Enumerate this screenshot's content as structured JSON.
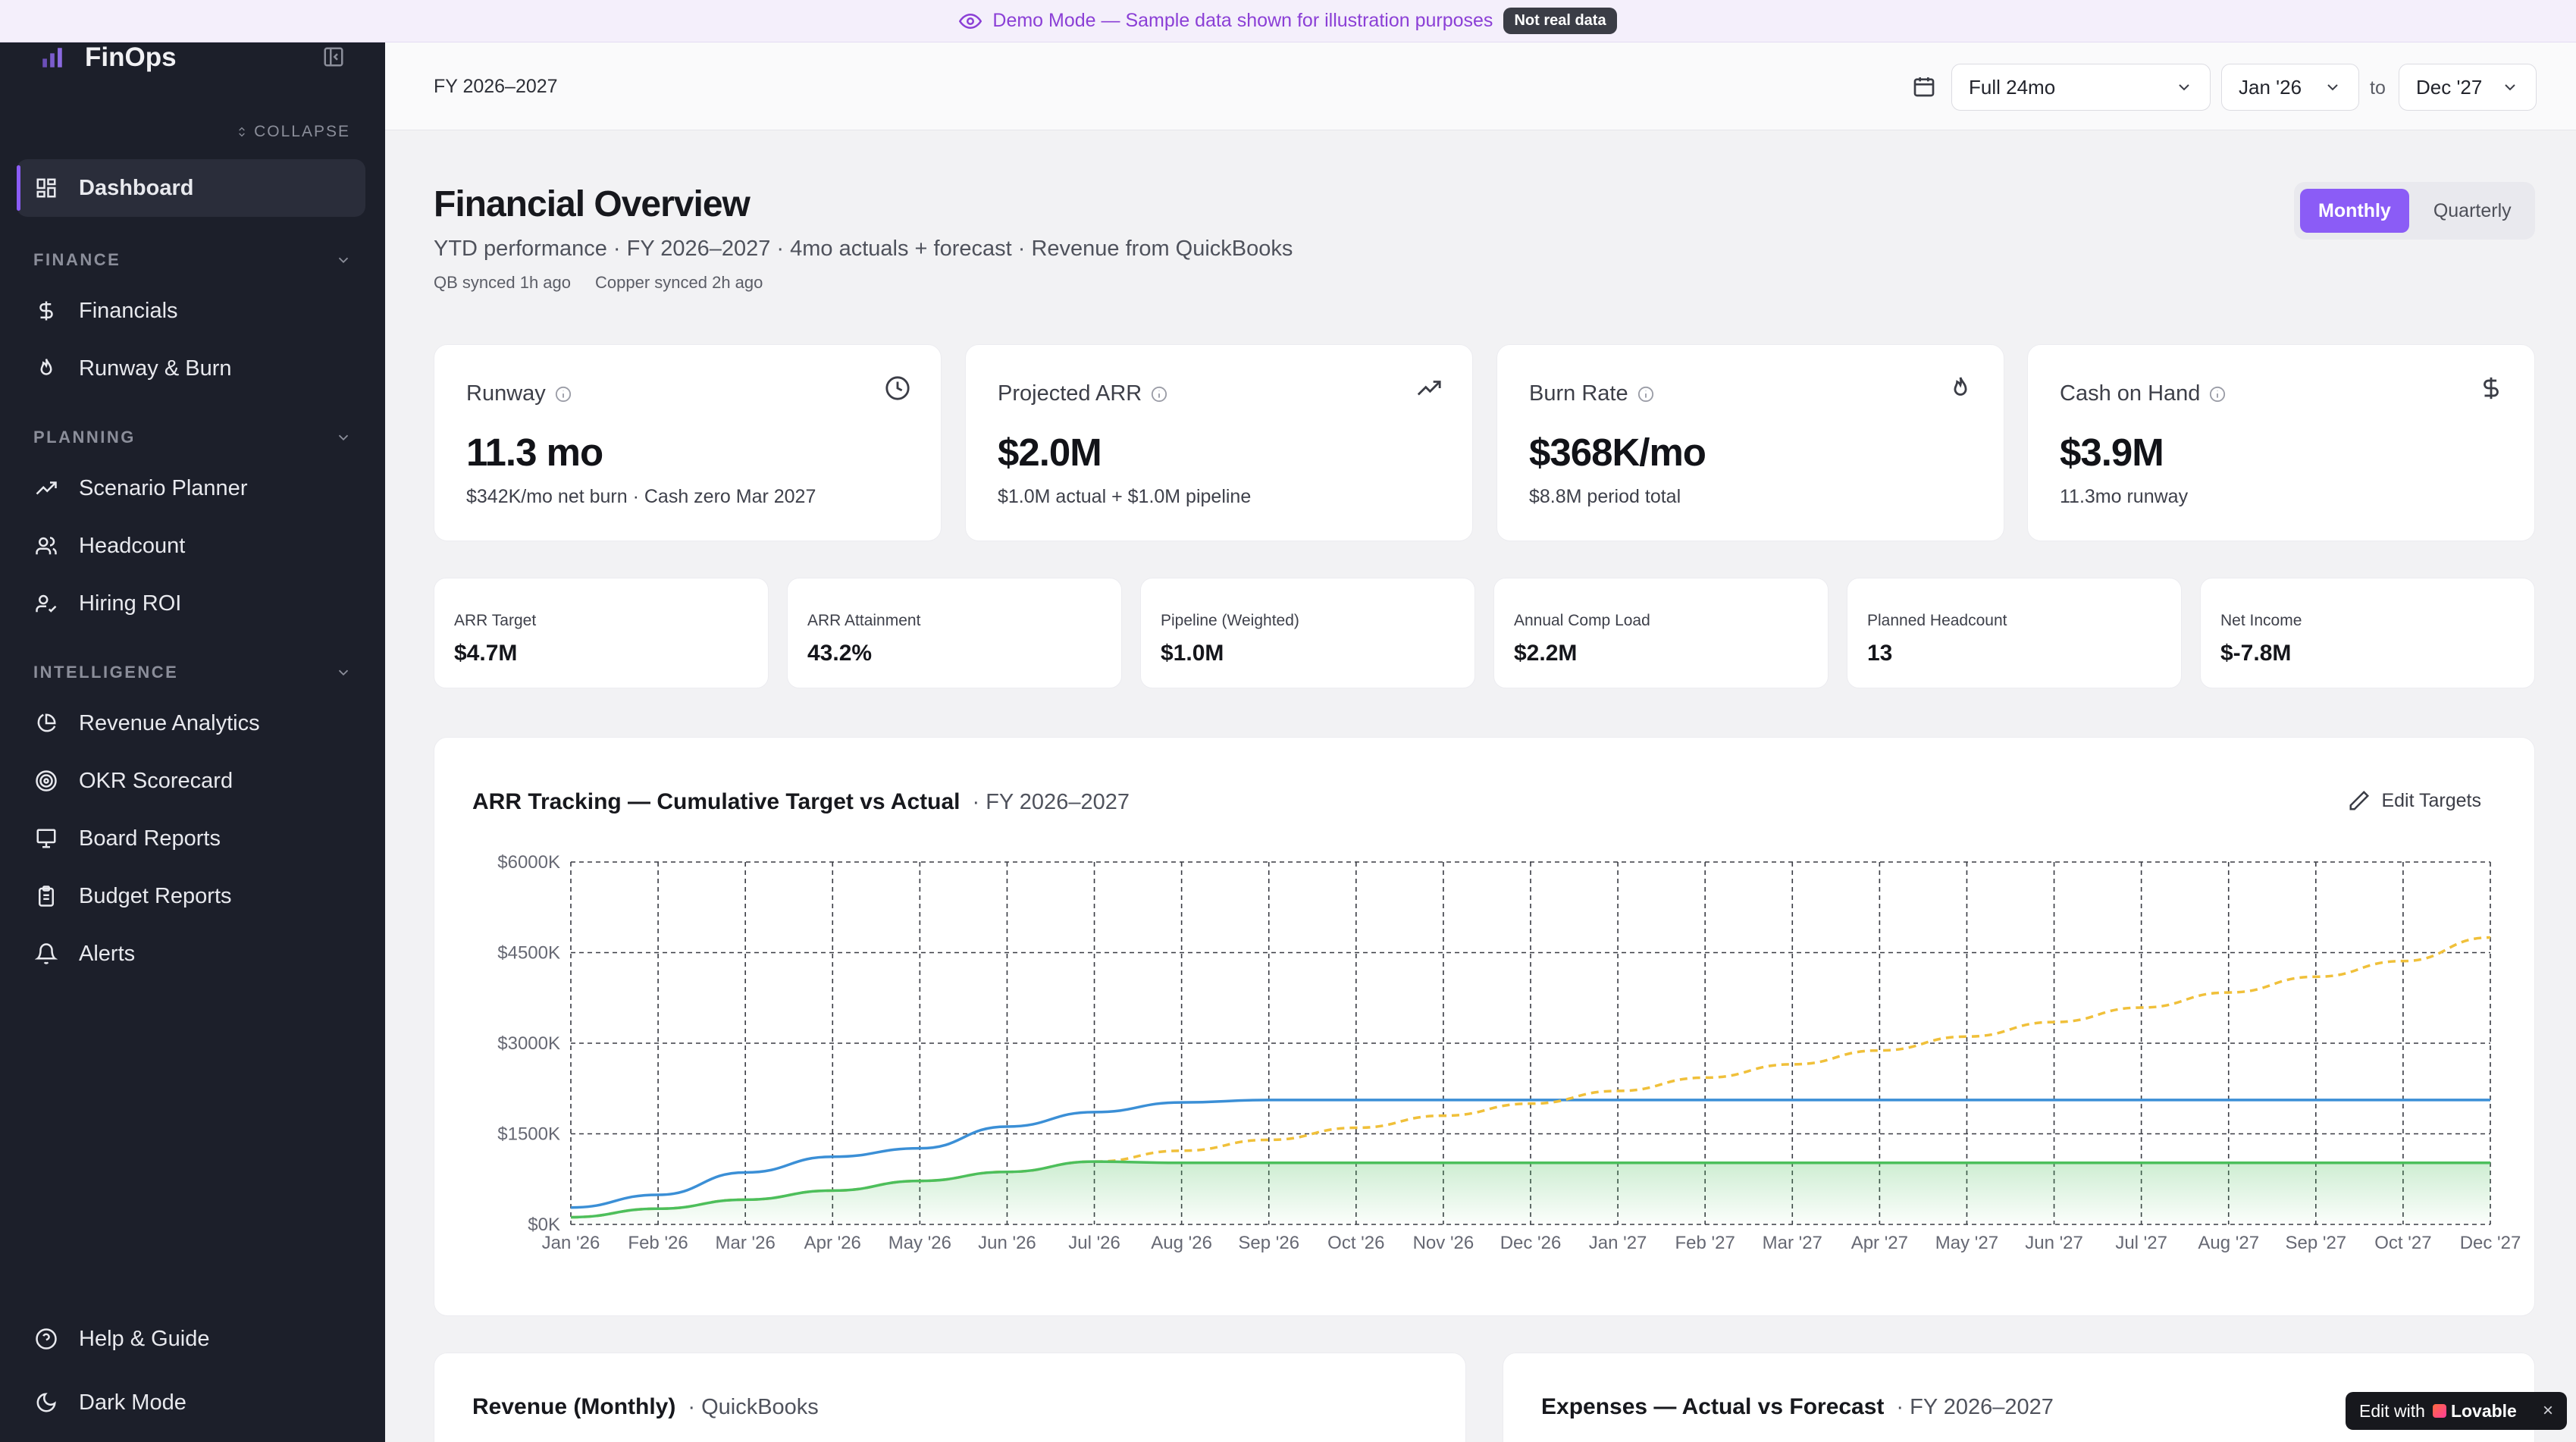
{
  "banner": {
    "text": "Demo Mode — Sample data shown for illustration purposes",
    "badge": "Not real data"
  },
  "sidebar": {
    "brand": "FinOps",
    "collapse": "COLLAPSE",
    "dashboard": "Dashboard",
    "sections": [
      {
        "title": "FINANCE",
        "items": [
          "Financials",
          "Runway & Burn"
        ]
      },
      {
        "title": "PLANNING",
        "items": [
          "Scenario Planner",
          "Headcount",
          "Hiring ROI"
        ]
      },
      {
        "title": "INTELLIGENCE",
        "items": [
          "Revenue Analytics",
          "OKR Scorecard",
          "Board Reports",
          "Budget Reports",
          "Alerts"
        ]
      }
    ],
    "footer": [
      "Help & Guide",
      "Dark Mode"
    ]
  },
  "topbar": {
    "fiscal_year": "FY 2026–2027",
    "range": "Full 24mo",
    "from": "Jan '26",
    "to_label": "to",
    "to": "Dec '27"
  },
  "header": {
    "title": "Financial Overview",
    "subtitle": "YTD performance · FY 2026–2027 · 4mo actuals + forecast · Revenue from QuickBooks",
    "sync_qb": "QB synced 1h ago",
    "sync_copper": "Copper synced 2h ago",
    "toggle": {
      "monthly": "Monthly",
      "quarterly": "Quarterly",
      "selected": "Monthly"
    }
  },
  "kpis": [
    {
      "title": "Runway",
      "value": "11.3 mo",
      "sub": "$342K/mo net burn · Cash zero Mar 2027",
      "icon": "clock-icon"
    },
    {
      "title": "Projected ARR",
      "value": "$2.0M",
      "sub": "$1.0M actual + $1.0M pipeline",
      "icon": "trending-up-icon"
    },
    {
      "title": "Burn Rate",
      "value": "$368K/mo",
      "sub": "$8.8M period total",
      "icon": "flame-icon"
    },
    {
      "title": "Cash on Hand",
      "value": "$3.9M",
      "sub": "11.3mo runway",
      "icon": "dollar-icon"
    }
  ],
  "metrics": [
    {
      "label": "ARR Target",
      "value": "$4.7M"
    },
    {
      "label": "ARR Attainment",
      "value": "43.2%"
    },
    {
      "label": "Pipeline (Weighted)",
      "value": "$1.0M"
    },
    {
      "label": "Annual Comp Load",
      "value": "$2.2M"
    },
    {
      "label": "Planned Headcount",
      "value": "13"
    },
    {
      "label": "Net Income",
      "value": "$-7.8M"
    }
  ],
  "arr_card": {
    "title": "ARR Tracking — Cumulative Target vs Actual",
    "subtitle": "· FY 2026–2027",
    "edit": "Edit Targets"
  },
  "chart_data": {
    "type": "line",
    "title": "ARR Tracking — Cumulative Target vs Actual",
    "categories": [
      "Jan '26",
      "Feb '26",
      "Mar '26",
      "Apr '26",
      "May '26",
      "Jun '26",
      "Jul '26",
      "Aug '26",
      "Sep '26",
      "Oct '26",
      "Nov '26",
      "Dec '26",
      "Jan '27",
      "Feb '27",
      "Mar '27",
      "Apr '27",
      "May '27",
      "Jun '27",
      "Jul '27",
      "Aug '27",
      "Sep '27",
      "Oct '27",
      "Dec '27"
    ],
    "x_ticks": [
      "Jan '26",
      "Feb '26",
      "Mar '26",
      "Apr '26",
      "May '26",
      "Jun '26",
      "Jul '26",
      "Aug '26",
      "Sep '26",
      "Oct '26",
      "Nov '26",
      "Dec '26",
      "Jan '27",
      "Feb '27",
      "Mar '27",
      "Apr '27",
      "May '27",
      "Jun '27",
      "Jul '27",
      "Aug '27",
      "Sep '27",
      "Oct '27",
      "Dec '27"
    ],
    "y_ticks": [
      "$0K",
      "$1500K",
      "$3000K",
      "$4500K",
      "$6000K"
    ],
    "ylim": [
      0,
      6000
    ],
    "grid": true,
    "series": [
      {
        "color": "#3b8fd6",
        "style": "solid",
        "values": [
          280,
          490,
          860,
          1120,
          1260,
          1620,
          1860,
          2020,
          2060,
          2060,
          2060,
          2060,
          2060,
          2060,
          2060,
          2060,
          2060,
          2060,
          2060,
          2060,
          2060,
          2060,
          2060
        ]
      },
      {
        "color": "#f0c03a",
        "style": "dashed",
        "values": [
          120,
          260,
          410,
          560,
          720,
          870,
          1040,
          1220,
          1400,
          1600,
          1800,
          2000,
          2210,
          2430,
          2650,
          2880,
          3110,
          3350,
          3590,
          3840,
          4100,
          4360,
          4750
        ]
      },
      {
        "color": "#4cbf5c",
        "style": "solid",
        "fill": true,
        "values": [
          120,
          260,
          410,
          560,
          720,
          870,
          1040,
          1020,
          1020,
          1020,
          1020,
          1020,
          1020,
          1020,
          1020,
          1020,
          1020,
          1020,
          1020,
          1020,
          1020,
          1020,
          1020
        ]
      }
    ]
  },
  "bottom": {
    "revenue_title": "Revenue (Monthly)",
    "revenue_sub": "· QuickBooks",
    "expenses_title": "Expenses — Actual vs Forecast",
    "expenses_sub": "· FY 2026–2027"
  },
  "lovable": {
    "prefix": "Edit with",
    "brand": "Lovable",
    "close": "×"
  }
}
